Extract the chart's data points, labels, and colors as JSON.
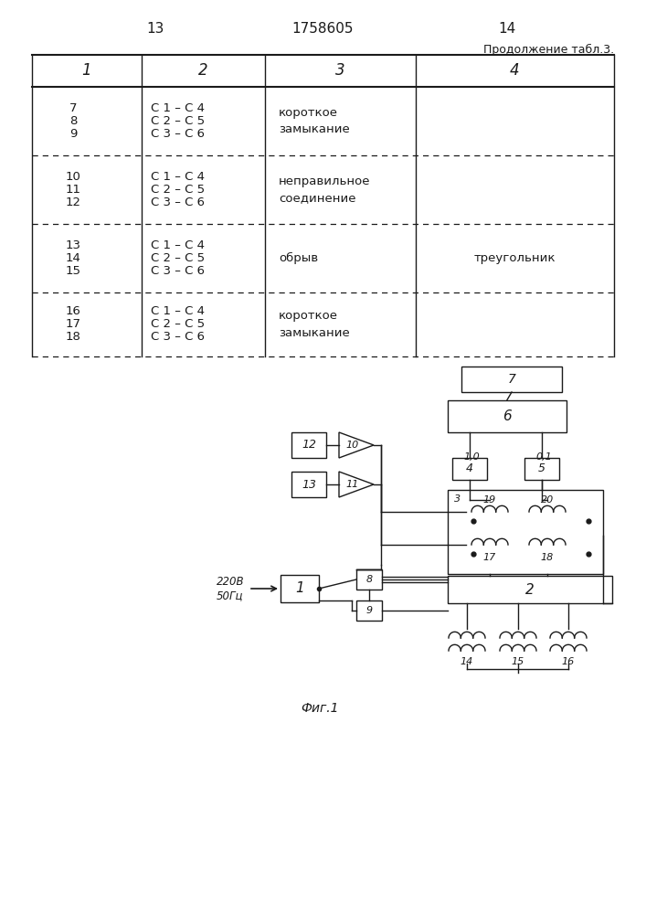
{
  "page_numbers": [
    "13",
    "14"
  ],
  "patent_number": "1758605",
  "continuation_text": "Продолжение табл.3.",
  "table_headers": [
    "1",
    "2",
    "3",
    "4"
  ],
  "table_rows": [
    {
      "col1": [
        "7",
        "8",
        "9"
      ],
      "col2": [
        "С 1 – С 4",
        "С 2 – С 5",
        "С 3 – С 6"
      ],
      "col3": "короткое\nзамыкание",
      "col4": ""
    },
    {
      "col1": [
        "10",
        "11",
        "12"
      ],
      "col2": [
        "С 1 – С 4",
        "С 2 – С 5",
        "С 3 – С 6"
      ],
      "col3": "неправильное\nсоединение",
      "col4": ""
    },
    {
      "col1": [
        "13",
        "14",
        "15"
      ],
      "col2": [
        "С 1 – С 4",
        "С 2 – С 5",
        "С 3 – С 6"
      ],
      "col3": "обрыв",
      "col4": "треугольник"
    },
    {
      "col1": [
        "16",
        "17",
        "18"
      ],
      "col2": [
        "С 1 – С 4",
        "С 2 – С 5",
        "С 3 – С 6"
      ],
      "col3": "короткое\nзамыкание",
      "col4": ""
    }
  ],
  "fig_caption": "Фиг.1",
  "power_label": "220В\n50Гц",
  "bg_color": "#ffffff",
  "line_color": "#1a1a1a",
  "text_color": "#1a1a1a"
}
